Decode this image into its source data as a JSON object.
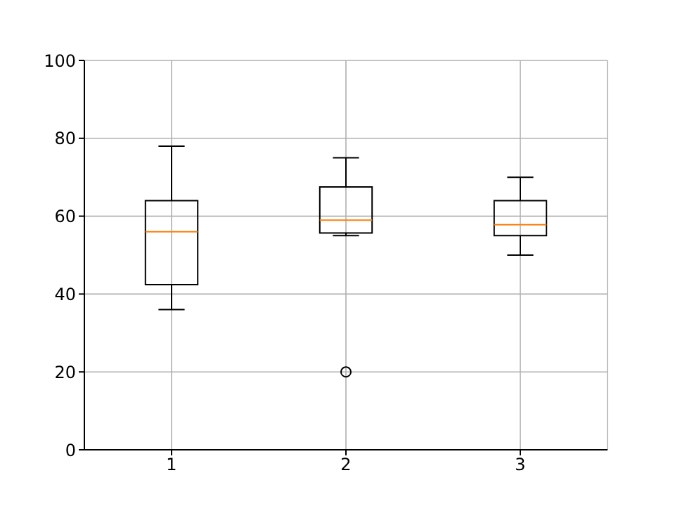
{
  "chart_data": {
    "type": "box",
    "categories": [
      "1",
      "2",
      "3"
    ],
    "boxes": [
      {
        "low": 36,
        "q1": 42.4,
        "median": 56,
        "q3": 64,
        "high": 78
      },
      {
        "low": 55,
        "q1": 55.7,
        "median": 59,
        "q3": 67.5,
        "high": 75,
        "outliers": [
          20
        ]
      },
      {
        "low": 50,
        "q1": 55,
        "median": 57.8,
        "q3": 64,
        "high": 70
      }
    ],
    "ylim": [
      0,
      100
    ],
    "yticks": [
      0,
      20,
      40,
      60,
      80,
      100
    ],
    "grid": true
  }
}
